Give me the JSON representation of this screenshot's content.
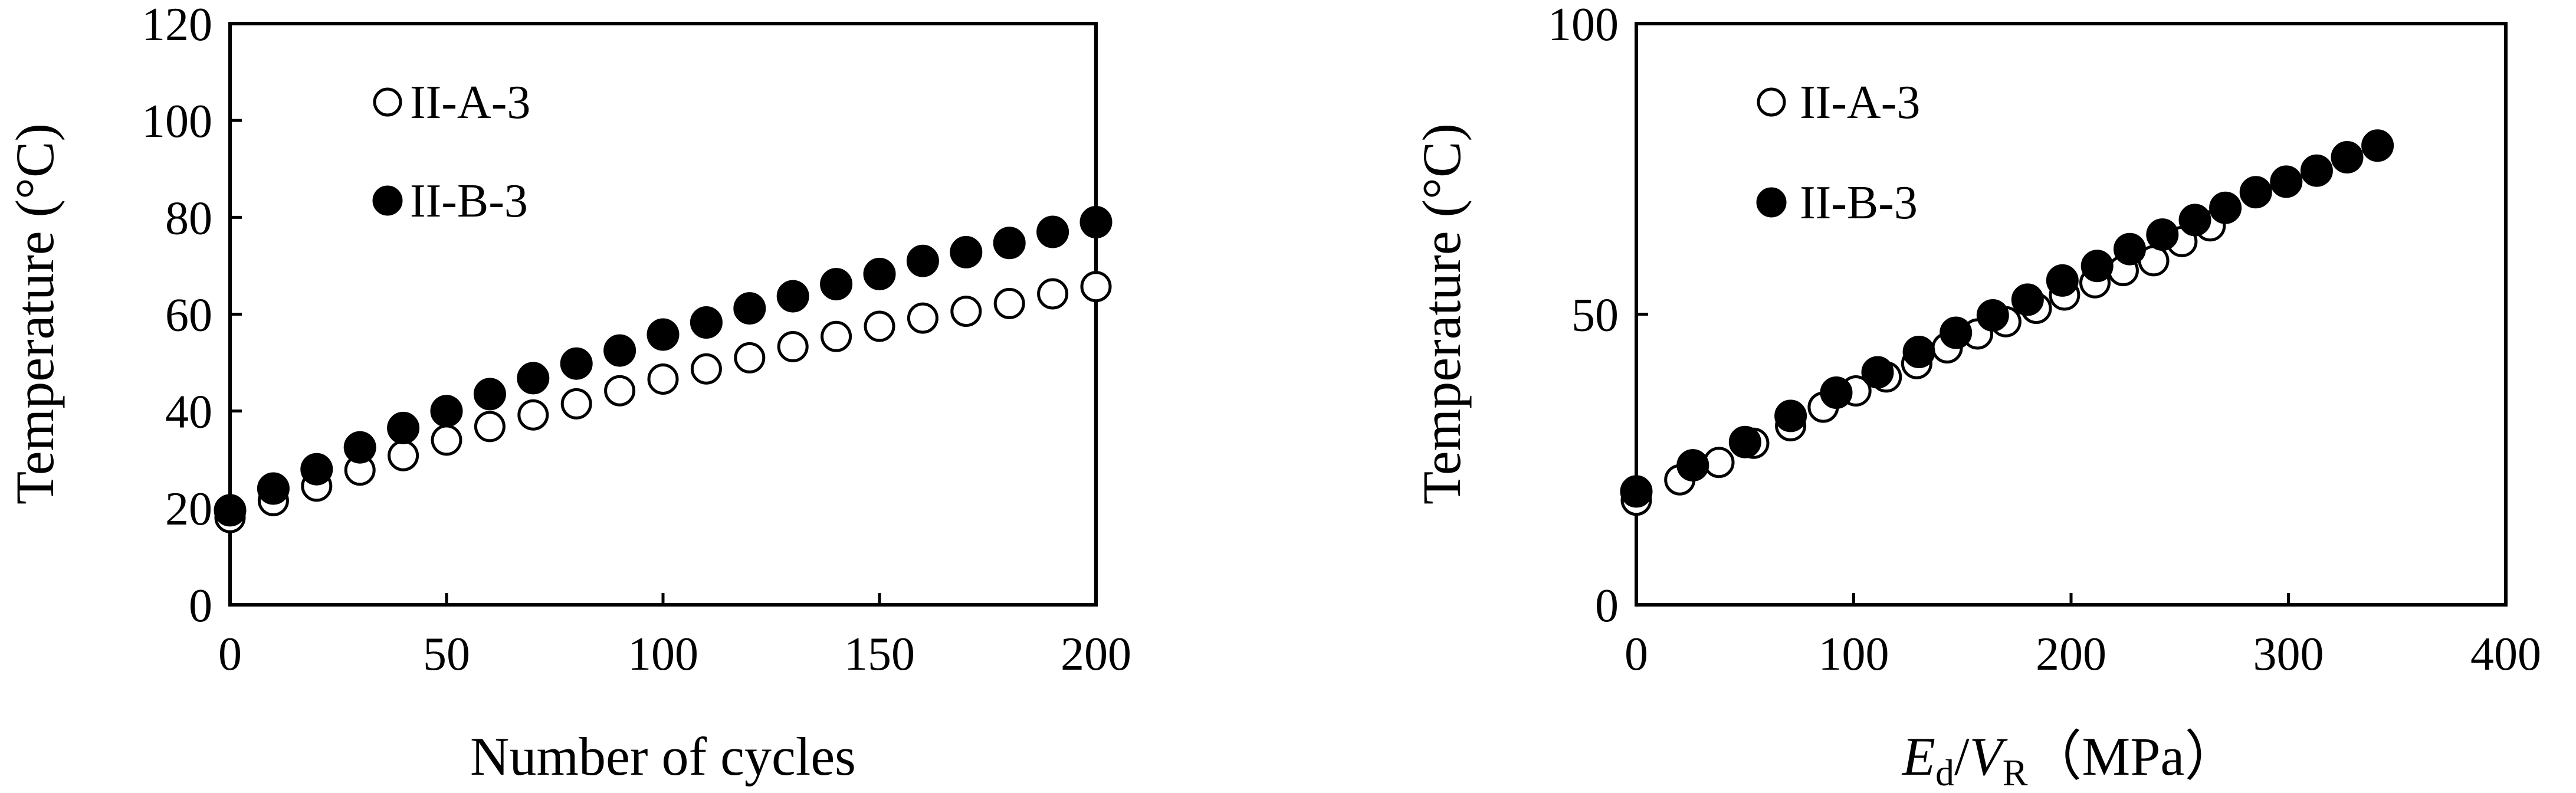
{
  "chart_data": [
    {
      "type": "scatter",
      "title": "",
      "xlabel": "Number of cycles",
      "ylabel": "Temperature (°C)",
      "xlim": [
        0,
        200
      ],
      "ylim": [
        0,
        120
      ],
      "xticks": [
        "0",
        "50",
        "100",
        "150",
        "200"
      ],
      "yticks": [
        "0",
        "20",
        "40",
        "60",
        "80",
        "100",
        "120"
      ],
      "grid": false,
      "legend_position": "top-left",
      "series": [
        {
          "name": "II-A-3",
          "marker": "open-circle",
          "x": [
            0,
            10,
            20,
            30,
            40,
            50,
            60,
            70,
            80,
            90,
            100,
            110,
            120,
            130,
            140,
            150,
            160,
            170,
            180,
            190,
            200
          ],
          "y": [
            18.0,
            21.5,
            24.5,
            27.8,
            30.8,
            34.0,
            36.8,
            39.2,
            41.5,
            44.2,
            46.6,
            48.7,
            51.0,
            53.3,
            55.4,
            57.5,
            59.2,
            60.6,
            62.2,
            64.2,
            65.7
          ]
        },
        {
          "name": "II-B-3",
          "marker": "filled-circle",
          "x": [
            0,
            10,
            20,
            30,
            40,
            50,
            60,
            70,
            80,
            90,
            100,
            110,
            120,
            130,
            140,
            150,
            160,
            170,
            180,
            190,
            200
          ],
          "y": [
            19.5,
            24.0,
            28.0,
            32.5,
            36.5,
            40.0,
            43.5,
            46.8,
            49.8,
            52.5,
            55.8,
            58.3,
            61.2,
            63.7,
            66.2,
            68.3,
            71.0,
            72.8,
            74.7,
            77.0,
            79.0
          ]
        }
      ]
    },
    {
      "type": "scatter",
      "title": "",
      "xlabel": "Ed/VR（MPa）",
      "xlabel_parts": {
        "e": "E",
        "d": "d",
        "slash": "/",
        "v": "V",
        "r": "R",
        "unit": "（MPa）"
      },
      "ylabel": "Temperature (°C)",
      "xlim": [
        0,
        400
      ],
      "ylim": [
        0,
        100
      ],
      "xticks": [
        "0",
        "100",
        "200",
        "300",
        "400"
      ],
      "yticks": [
        "0",
        "50",
        "100"
      ],
      "grid": false,
      "legend_position": "top-left",
      "series": [
        {
          "name": "II-A-3",
          "marker": "open-circle",
          "x": [
            0,
            20,
            38,
            54,
            71,
            86,
            101,
            115,
            129,
            143,
            157,
            170,
            184,
            197,
            211,
            224,
            238,
            251,
            264
          ],
          "y": [
            18.0,
            21.5,
            24.5,
            27.8,
            30.8,
            34.0,
            36.8,
            39.2,
            41.5,
            44.2,
            46.6,
            48.7,
            51.0,
            53.3,
            55.4,
            57.5,
            59.2,
            62.5,
            65.2
          ]
        },
        {
          "name": "II-B-3",
          "marker": "filled-circle",
          "x": [
            0,
            26,
            50,
            71,
            92,
            111,
            130,
            147,
            164,
            180,
            196,
            212,
            227,
            242,
            257,
            271,
            285,
            299,
            313,
            327,
            341
          ],
          "y": [
            19.5,
            24.0,
            28.0,
            32.5,
            36.5,
            40.0,
            43.5,
            46.8,
            49.8,
            52.5,
            55.8,
            58.3,
            61.2,
            63.7,
            66.2,
            68.3,
            71.0,
            72.8,
            74.7,
            77.0,
            79.0
          ]
        }
      ]
    }
  ]
}
